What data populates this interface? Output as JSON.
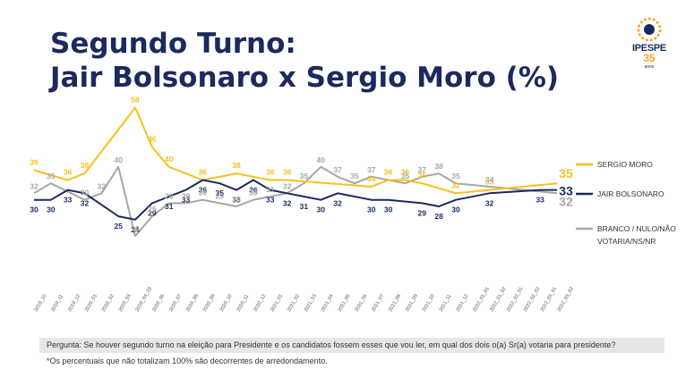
{
  "header": {
    "title_line1": "Segundo Turno:",
    "title_line2": "Jair Bolsonaro x Sergio Moro (%)"
  },
  "logo": {
    "name": "IPESPE",
    "years": "35",
    "years_label": "anos"
  },
  "chart_data": {
    "type": "line",
    "categories": [
      "2019_10",
      "2019_11",
      "2019_12",
      "2020_01",
      "2020_02",
      "2020_03",
      "2020_04_29",
      "2020_06",
      "2020_07",
      "2020_08",
      "2020_09",
      "2020_10",
      "2020_11",
      "2020_12",
      "2021_01",
      "2021_02",
      "2021_03",
      "2021_04",
      "2021_05",
      "2021_06",
      "2021_07",
      "2021_08",
      "2021_09",
      "2021_10",
      "2021_11",
      "2021_12",
      "2022_01_01",
      "2022_01_02",
      "2022_02_01",
      "2022_02_02",
      "2022_03_01",
      "2022_03_02"
    ],
    "series": [
      {
        "name": "SERGIO MORO",
        "color": "#f6c11c",
        "values": [
          39,
          null,
          36,
          38,
          null,
          null,
          58,
          46,
          40,
          null,
          36,
          null,
          38,
          null,
          36,
          36,
          null,
          null,
          null,
          null,
          34,
          36,
          36,
          35,
          null,
          32,
          null,
          33,
          null,
          null,
          null,
          35
        ],
        "labels": [
          39,
          null,
          36,
          38,
          null,
          null,
          58,
          46,
          40,
          null,
          36,
          null,
          38,
          null,
          36,
          36,
          null,
          null,
          null,
          null,
          34,
          36,
          36,
          35,
          null,
          32,
          null,
          33,
          null,
          null,
          null,
          35
        ]
      },
      {
        "name": "JAIR BOLSONARO",
        "color": "#1b2a5e",
        "values": [
          30,
          30,
          33,
          32,
          null,
          25,
          24,
          29,
          31,
          33,
          36,
          35,
          33,
          36,
          33,
          32,
          31,
          30,
          32,
          null,
          30,
          30,
          null,
          29,
          28,
          30,
          null,
          32,
          null,
          null,
          33,
          33
        ],
        "labels": [
          30,
          30,
          33,
          32,
          null,
          25,
          24,
          29,
          31,
          33,
          36,
          35,
          33,
          36,
          33,
          32,
          31,
          30,
          32,
          null,
          30,
          30,
          null,
          29,
          28,
          30,
          null,
          32,
          null,
          null,
          33,
          33
        ]
      },
      {
        "name": "BRANCO / NULO/NÃO VOTARIA/NS/NR",
        "color": "#a6a6a6",
        "values": [
          32,
          35,
          null,
          30,
          32,
          40,
          19,
          25,
          29,
          29,
          30,
          29,
          28,
          30,
          31,
          32,
          35,
          40,
          37,
          35,
          37,
          null,
          35,
          37,
          38,
          35,
          null,
          34,
          null,
          null,
          null,
          32
        ],
        "labels": [
          32,
          35,
          null,
          30,
          32,
          40,
          19,
          25,
          29,
          29,
          30,
          29,
          28,
          30,
          31,
          32,
          35,
          40,
          37,
          35,
          37,
          null,
          35,
          37,
          38,
          35,
          null,
          34,
          null,
          null,
          null,
          32
        ]
      }
    ],
    "ylim": [
      15,
      60
    ],
    "legend_position": "right"
  },
  "legend": [
    {
      "line1": "SERGIO MORO",
      "line2": ""
    },
    {
      "line1": "JAIR BOLSONARO",
      "line2": ""
    },
    {
      "line1": "BRANCO / NULO/NÃO",
      "line2": "VOTARIA/NS/NR"
    }
  ],
  "footer": {
    "question": "Pergunta:  Se houver segundo turno na eleição para Presidente e os candidatos fossem esses que vou ler, em qual dos dois o(a) Sr(a) votaria para presidente?",
    "note": "*Os percentuais que não totalizam 100% são decorrentes de arredondamento."
  }
}
